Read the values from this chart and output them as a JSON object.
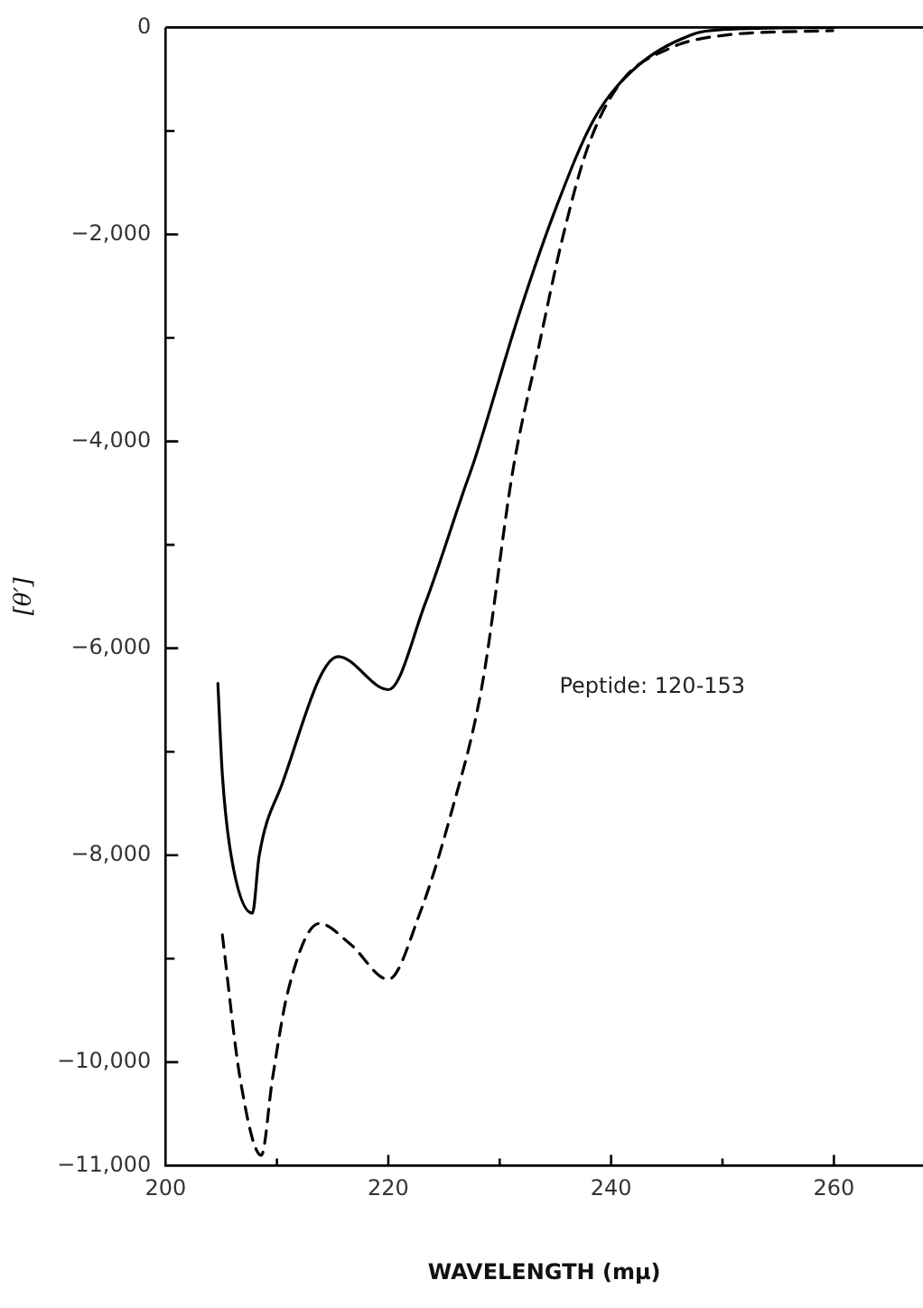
{
  "chart_data": {
    "type": "line",
    "xlabel": "WAVELENGTH (mμ)",
    "ylabel": "[θ′]",
    "annotations": [
      "Peptide: 120-153"
    ],
    "xlim": [
      200,
      268
    ],
    "xticks": [
      200,
      {
        "value": 210,
        "label": null
      },
      220,
      {
        "value": 230,
        "label": null
      },
      240,
      {
        "value": 250,
        "label": null
      },
      260
    ],
    "ylim": [
      -11000,
      0
    ],
    "yticks": [
      0,
      {
        "value": -1000,
        "label": null
      },
      {
        "value": -2000,
        "label": "−2,000"
      },
      {
        "value": -3000,
        "label": null
      },
      {
        "value": -4000,
        "label": "−4,000"
      },
      {
        "value": -5000,
        "label": null
      },
      {
        "value": -6000,
        "label": "−6,000"
      },
      {
        "value": -7000,
        "label": null
      },
      {
        "value": -8000,
        "label": "−8,000"
      },
      {
        "value": -9000,
        "label": null
      },
      {
        "value": -10000,
        "label": "−10,000"
      },
      {
        "value": -11000,
        "label": "−11,000"
      }
    ],
    "grid": false,
    "legend": false,
    "marker": "none",
    "series": [
      {
        "color": "#000000",
        "line_style": "solid",
        "x": [
          204.7,
          205.1,
          205.9,
          207.8,
          208.4,
          210.4,
          215.5,
          220,
          223.3,
          226.7,
          227.8,
          231.8,
          235.1,
          238.5,
          242.4,
          247.5,
          250,
          260
        ],
        "values": [
          -6340,
          -7220,
          -8010,
          -8560,
          -8010,
          -7330,
          -6080,
          -6400,
          -5570,
          -4500,
          -4160,
          -2750,
          -1730,
          -880,
          -370,
          -60,
          -20,
          0
        ]
      },
      {
        "color": "#000000",
        "line_style": "dashed",
        "x": [
          205.1,
          206.7,
          208.6,
          209.6,
          211,
          213.8,
          216.6,
          220,
          222.8,
          225.6,
          228.4,
          231.2,
          233.4,
          235.7,
          237.9,
          240.8,
          245.3,
          249.8,
          259.9
        ],
        "values": [
          -8770,
          -10160,
          -10900,
          -10160,
          -9310,
          -8660,
          -8860,
          -9200,
          -8570,
          -7610,
          -6370,
          -4270,
          -3140,
          -2010,
          -1160,
          -540,
          -200,
          -80,
          -30
        ]
      }
    ]
  }
}
